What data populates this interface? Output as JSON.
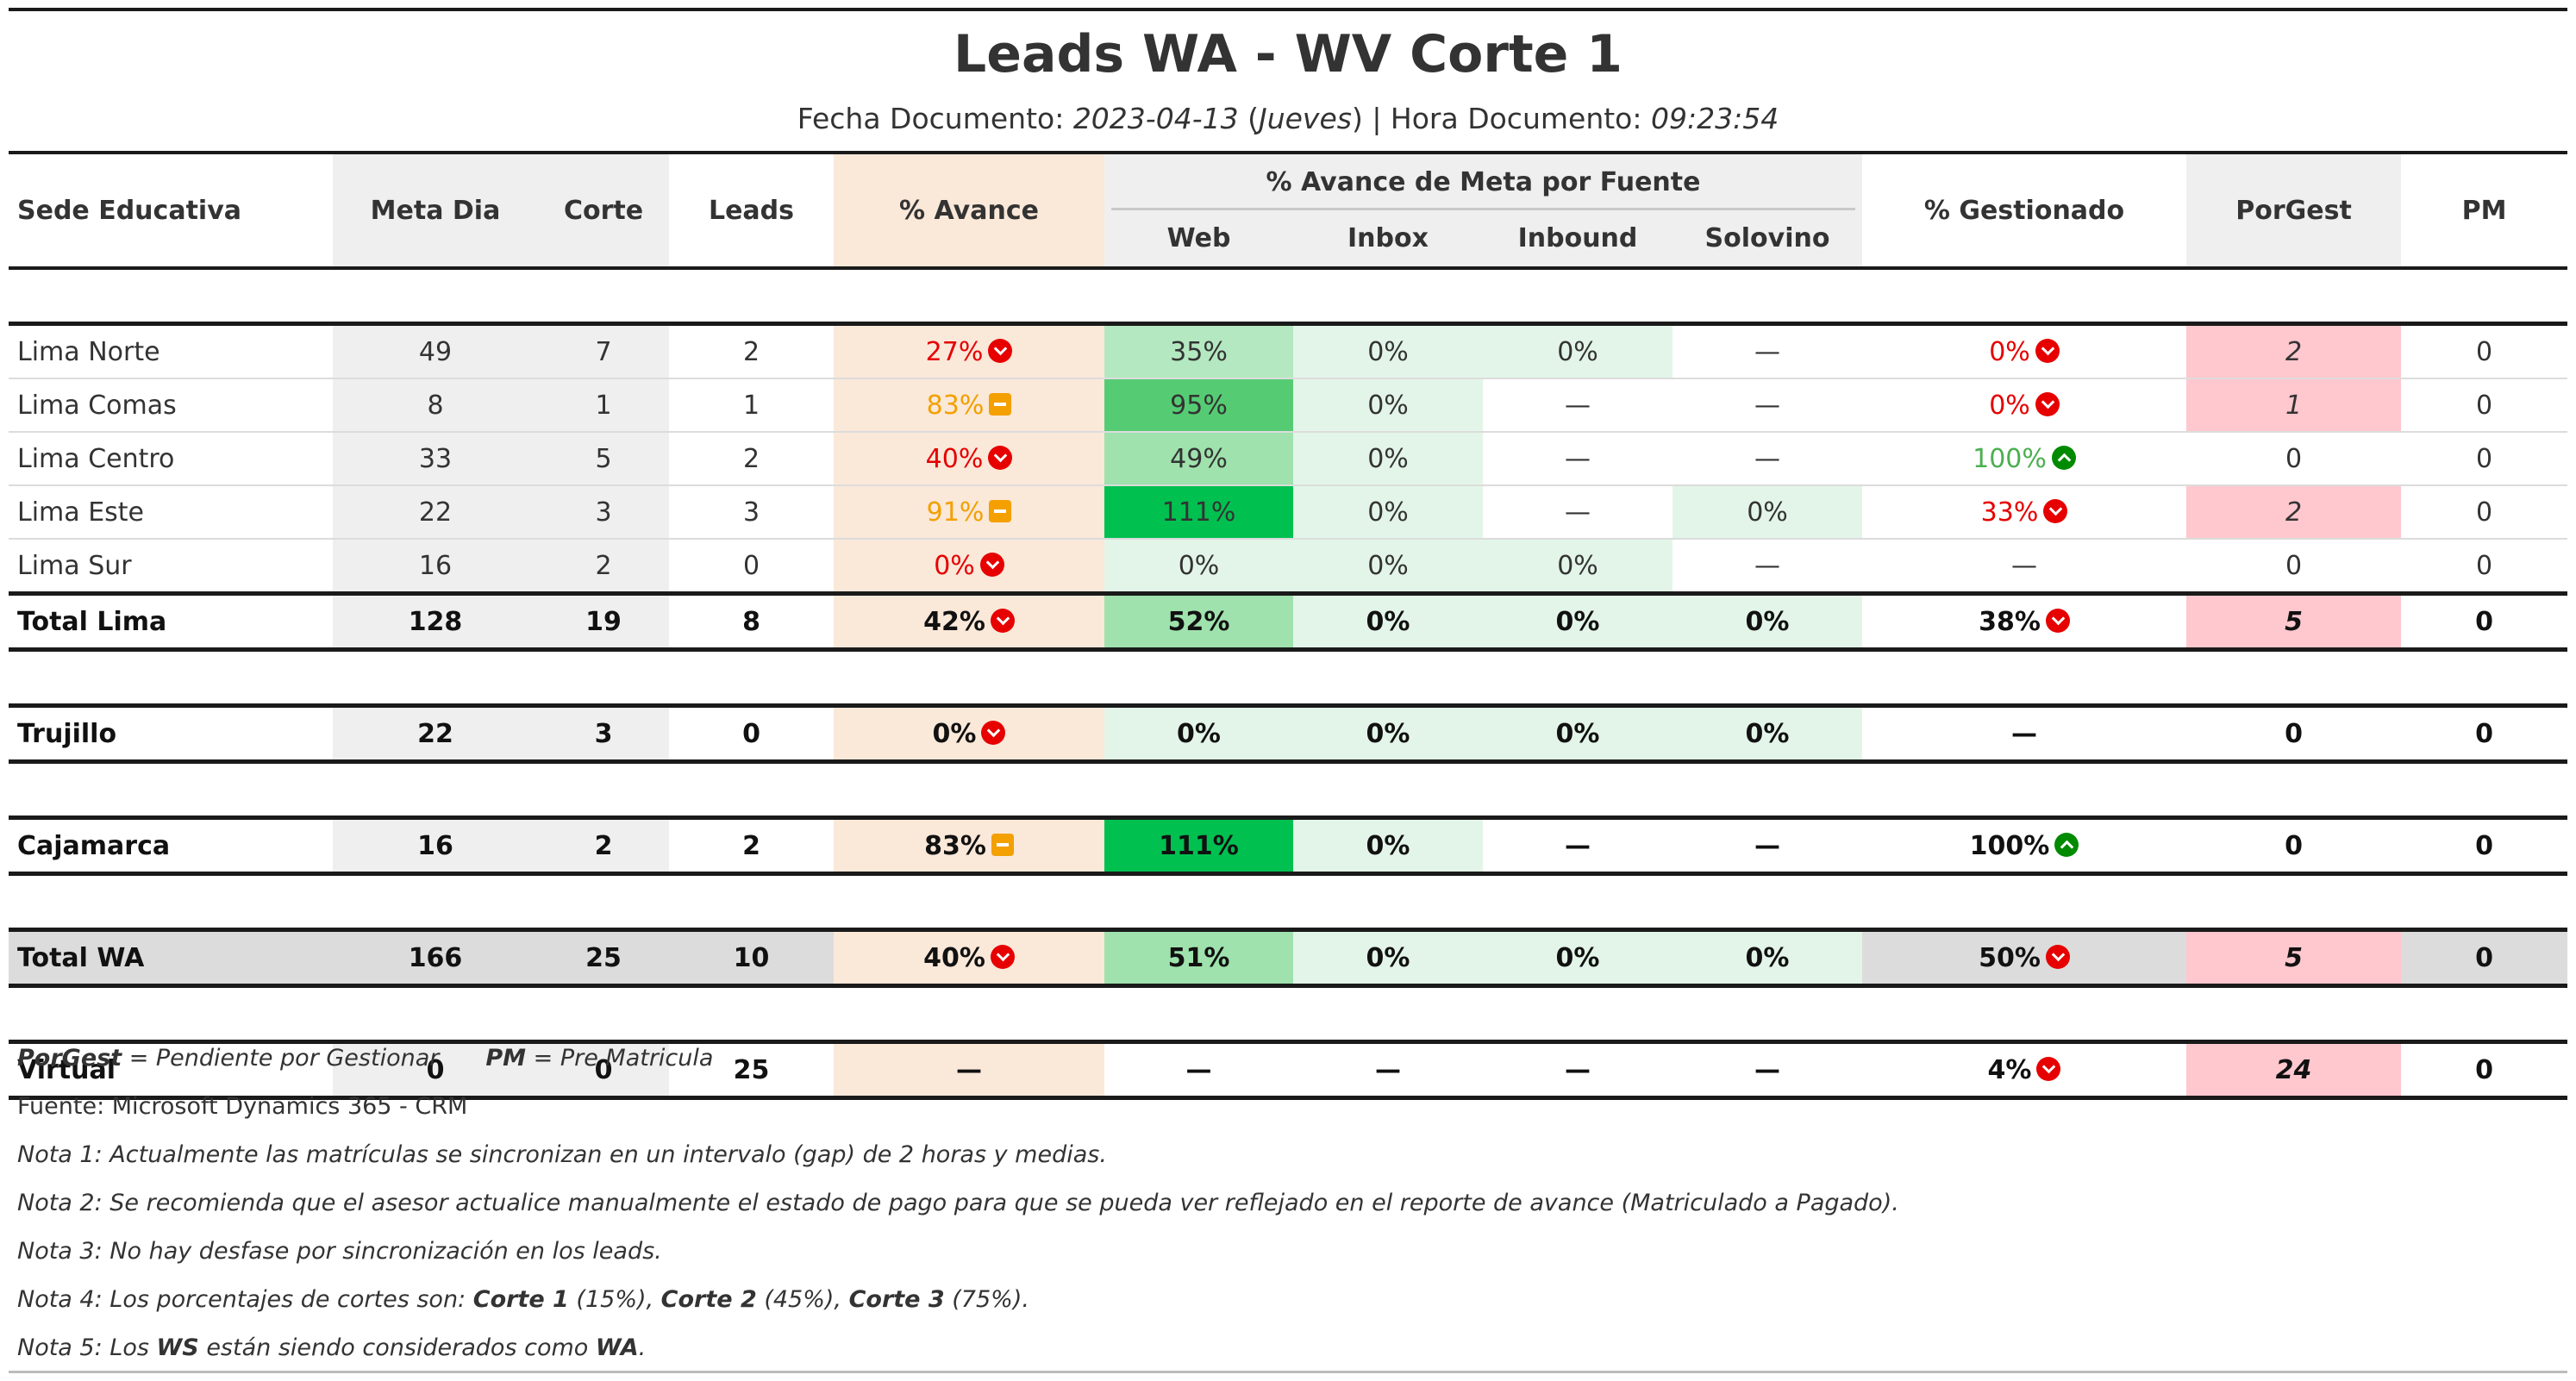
{
  "title": "Leads WA - WV Corte 1",
  "subtitle": {
    "fecha_label": "Fecha Documento: ",
    "fecha_value": "2023-04-13",
    "dia_value": "Jueves",
    "hora_label": " | Hora Documento: ",
    "hora_value": "09:23:54"
  },
  "header": {
    "sede": "Sede Educativa",
    "meta_dia": "Meta Dia",
    "corte": "Corte",
    "leads": "Leads",
    "avance": "% Avance",
    "fuente_group": "% Avance de Meta por Fuente",
    "web": "Web",
    "inbox": "Inbox",
    "inbound": "Inbound",
    "solovino": "Solovino",
    "gestionado": "% Gestionado",
    "porgest": "PorGest",
    "pm": "PM"
  },
  "rows": [
    {
      "sede": "Lima Norte",
      "meta": "49",
      "corte": "7",
      "leads": "2",
      "avance": "27%",
      "web": "35%",
      "inbox": "0%",
      "inbound": "0%",
      "solovino": "—",
      "gest": "0%",
      "porgest": "2",
      "pm": "0"
    },
    {
      "sede": "Lima Comas",
      "meta": "8",
      "corte": "1",
      "leads": "1",
      "avance": "83%",
      "web": "95%",
      "inbox": "0%",
      "inbound": "—",
      "solovino": "—",
      "gest": "0%",
      "porgest": "1",
      "pm": "0"
    },
    {
      "sede": "Lima Centro",
      "meta": "33",
      "corte": "5",
      "leads": "2",
      "avance": "40%",
      "web": "49%",
      "inbox": "0%",
      "inbound": "—",
      "solovino": "—",
      "gest": "100%",
      "porgest": "0",
      "pm": "0"
    },
    {
      "sede": "Lima Este",
      "meta": "22",
      "corte": "3",
      "leads": "3",
      "avance": "91%",
      "web": "111%",
      "inbox": "0%",
      "inbound": "—",
      "solovino": "0%",
      "gest": "33%",
      "porgest": "2",
      "pm": "0"
    },
    {
      "sede": "Lima Sur",
      "meta": "16",
      "corte": "2",
      "leads": "0",
      "avance": "0%",
      "web": "0%",
      "inbox": "0%",
      "inbound": "0%",
      "solovino": "—",
      "gest": "—",
      "porgest": "0",
      "pm": "0"
    }
  ],
  "totals": {
    "lima": {
      "sede": "Total Lima",
      "meta": "128",
      "corte": "19",
      "leads": "8",
      "avance": "42%",
      "web": "52%",
      "inbox": "0%",
      "inbound": "0%",
      "solovino": "0%",
      "gest": "38%",
      "porgest": "5",
      "pm": "0"
    },
    "trujillo": {
      "sede": "Trujillo",
      "meta": "22",
      "corte": "3",
      "leads": "0",
      "avance": "0%",
      "web": "0%",
      "inbox": "0%",
      "inbound": "0%",
      "solovino": "0%",
      "gest": "—",
      "porgest": "0",
      "pm": "0"
    },
    "cajamarca": {
      "sede": "Cajamarca",
      "meta": "16",
      "corte": "2",
      "leads": "2",
      "avance": "83%",
      "web": "111%",
      "inbox": "0%",
      "inbound": "—",
      "solovino": "—",
      "gest": "100%",
      "porgest": "0",
      "pm": "0"
    },
    "wa": {
      "sede": "Total WA",
      "meta": "166",
      "corte": "25",
      "leads": "10",
      "avance": "40%",
      "web": "51%",
      "inbox": "0%",
      "inbound": "0%",
      "solovino": "0%",
      "gest": "50%",
      "porgest": "5",
      "pm": "0"
    },
    "virtual": {
      "sede": "Virtual",
      "meta": "0",
      "corte": "0",
      "leads": "25",
      "avance": "—",
      "web": "—",
      "inbox": "—",
      "inbound": "—",
      "solovino": "—",
      "gest": "4%",
      "porgest": "24",
      "pm": "0"
    }
  },
  "icons": {
    "down": "chevron-down-circle-icon",
    "up": "chevron-up-circle-icon",
    "mid": "minus-square-icon"
  },
  "colors": {
    "red": "#e60000",
    "orange": "#f3a000",
    "green": "#4caf50",
    "avance_bg": "#fae8d9",
    "porgest_bg": "#ffc7ce",
    "web_max": "#00c050"
  },
  "notes": {
    "legend_porgest_abbr": "PorGest",
    "legend_porgest_text": " = Pendiente por Gestionar",
    "legend_pm_abbr": "PM",
    "legend_pm_text": " = Pre Matricula",
    "fuente": "Fuente: Microsoft Dynamics 365 - CRM",
    "nota1": "Nota 1: Actualmente las matrículas se sincronizan en un intervalo (gap) de 2 horas y medias.",
    "nota2": "Nota 2: Se recomienda que el asesor actualice manualmente el estado de pago para que se pueda ver reflejado en el reporte de avance (Matriculado a Pagado).",
    "nota3": "Nota 3: No hay desfase por sincronización en los leads.",
    "nota4_a": "Nota 4: Los porcentajes de cortes son: ",
    "nota4_c1": "Corte 1",
    "nota4_c1p": " (15%), ",
    "nota4_c2": "Corte 2",
    "nota4_c2p": " (45%), ",
    "nota4_c3": "Corte 3",
    "nota4_c3p": " (75%).",
    "nota5_a": "Nota 5: Los ",
    "nota5_ws": "WS",
    "nota5_b": " están siendo considerados como ",
    "nota5_wa": "WA",
    "nota5_c": "."
  }
}
